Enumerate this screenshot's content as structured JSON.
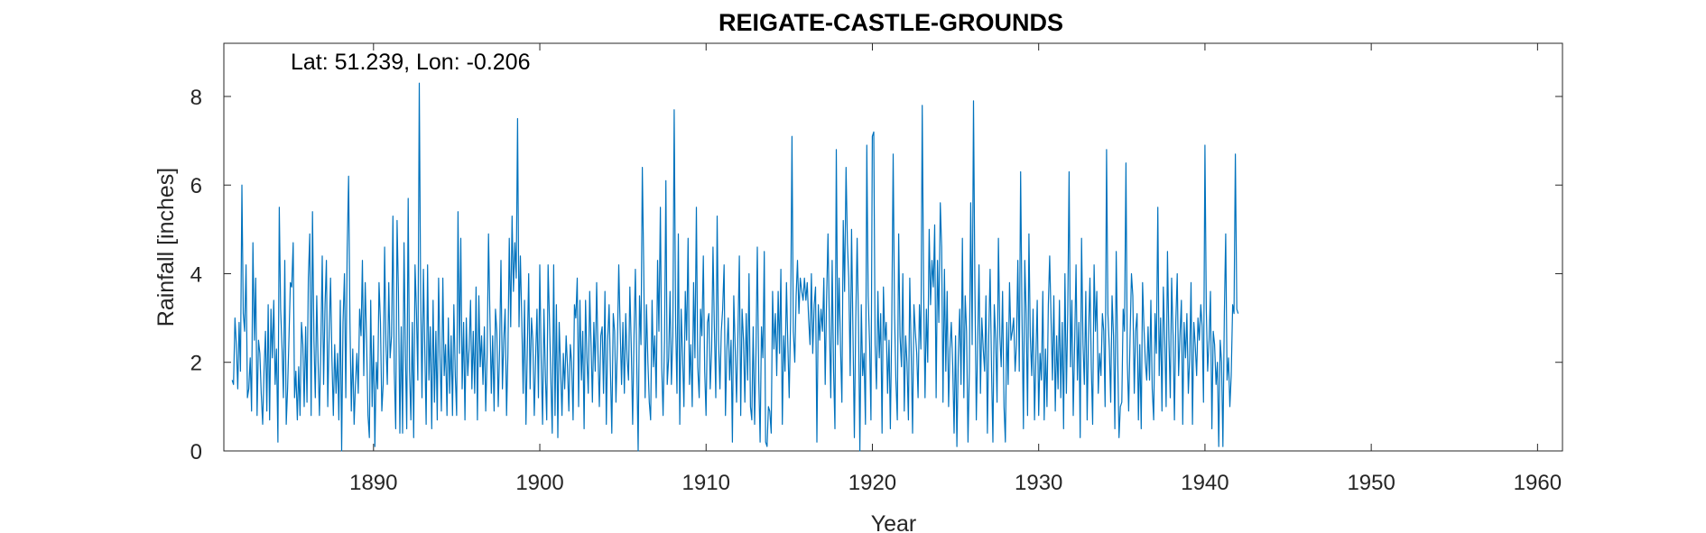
{
  "chart_data": {
    "type": "line",
    "title": "REIGATE-CASTLE-GROUNDS",
    "xlabel": "Year",
    "ylabel": "Rainfall [inches]",
    "annotation": "Lat: 51.239, Lon: -0.206",
    "xlim": [
      1881,
      1961.5
    ],
    "ylim": [
      0,
      9.2
    ],
    "xticks": [
      1890,
      1900,
      1910,
      1920,
      1930,
      1940,
      1950,
      1960
    ],
    "yticks": [
      0,
      2,
      4,
      6,
      8
    ],
    "grid": false,
    "line_color": "#0072BD",
    "series": [
      {
        "x_start": 1881.5,
        "x_step": 0.08333,
        "values": [
          1.6,
          1.5,
          3.0,
          2.4,
          1.4,
          2.9,
          1.8,
          6.0,
          3.1,
          2.7,
          4.2,
          1.2,
          1.4,
          2.1,
          0.9,
          4.7,
          2.5,
          3.9,
          0.8,
          2.5,
          2.2,
          1.3,
          0.6,
          1.8,
          2.7,
          0.9,
          3.3,
          0.7,
          3.2,
          2.1,
          3.4,
          1.5,
          2.3,
          0.2,
          5.5,
          3.2,
          2.3,
          1.2,
          4.3,
          0.6,
          1.4,
          2.6,
          3.8,
          3.7,
          4.7,
          1.2,
          1.8,
          0.7,
          1.9,
          0.8,
          2.9,
          2.4,
          1.0,
          2.8,
          1.1,
          3.9,
          4.9,
          0.8,
          5.4,
          2.5,
          1.2,
          3.5,
          2.0,
          0.8,
          2.4,
          4.4,
          1.5,
          3.3,
          4.3,
          1.0,
          2.7,
          3.9,
          2.1,
          0.8,
          2.4,
          1.3,
          2.2,
          0.7,
          3.4,
          0.0,
          2.9,
          4.0,
          1.2,
          4.5,
          6.2,
          2.9,
          0.9,
          2.3,
          0.6,
          1.5,
          2.2,
          1.3,
          3.2,
          2.6,
          4.3,
          1.7,
          3.8,
          2.5,
          0.8,
          0.3,
          3.4,
          1.0,
          2.6,
          0.1,
          2.0,
          1.4,
          3.8,
          2.9,
          0.9,
          1.5,
          4.6,
          2.4,
          1.5,
          3.8,
          2.1,
          2.6,
          5.3,
          1.8,
          0.5,
          5.2,
          3.6,
          0.4,
          2.8,
          0.4,
          4.7,
          2.2,
          0.5,
          5.7,
          1.8,
          0.7,
          2.9,
          0.3,
          4.2,
          3.1,
          1.6,
          8.3,
          3.6,
          1.2,
          4.1,
          2.3,
          0.6,
          4.2,
          1.6,
          2.8,
          0.5,
          3.4,
          1.1,
          2.7,
          0.7,
          3.9,
          2.1,
          0.9,
          3.9,
          1.7,
          2.4,
          0.8,
          3.0,
          1.3,
          2.6,
          0.8,
          3.3,
          1.7,
          0.8,
          5.4,
          2.2,
          4.8,
          1.4,
          2.9,
          0.7,
          3.0,
          1.7,
          2.3,
          3.4,
          1.4,
          2.7,
          1.3,
          3.7,
          0.7,
          3.5,
          1.9,
          2.6,
          1.5,
          2.8,
          0.9,
          2.2,
          4.9,
          3.1,
          1.3,
          2.6,
          0.9,
          3.2,
          2.7,
          1.0,
          2.3,
          4.3,
          1.4,
          2.5,
          3.2,
          0.8,
          2.2,
          4.8,
          2.8,
          5.3,
          3.6,
          4.7,
          3.9,
          7.5,
          2.8,
          4.4,
          2.9,
          1.3,
          3.4,
          0.6,
          2.3,
          4.0,
          1.4,
          3.0,
          2.5,
          0.8,
          2.1,
          3.2,
          1.2,
          4.2,
          2.1,
          0.6,
          3.2,
          1.7,
          0.7,
          4.2,
          2.9,
          1.6,
          0.4,
          4.2,
          0.8,
          3.3,
          0.3,
          2.9,
          1.9,
          0.8,
          2.2,
          1.4,
          2.6,
          1.9,
          0.9,
          2.4,
          2.0,
          0.7,
          3.3,
          3.0,
          3.9,
          1.0,
          3.4,
          1.6,
          2.7,
          0.5,
          3.4,
          2.1,
          1.3,
          3.6,
          2.4,
          1.1,
          2.9,
          1.8,
          3.8,
          2.2,
          1.0,
          2.6,
          2.8,
          1.3,
          3.6,
          0.6,
          2.5,
          3.3,
          1.8,
          0.4,
          3.1,
          2.7,
          1.1,
          2.4,
          4.2,
          2.8,
          1.5,
          2.9,
          1.3,
          3.1,
          2.1,
          1.6,
          3.7,
          2.4,
          0.6,
          2.6,
          4.1,
          1.9,
          0.0,
          3.5,
          2.4,
          6.4,
          4.2,
          1.2,
          3.3,
          2.0,
          1.1,
          0.7,
          3.4,
          1.9,
          2.6,
          1.2,
          4.3,
          2.7,
          5.5,
          1.9,
          0.8,
          2.5,
          6.1,
          1.5,
          2.1,
          3.6,
          1.5,
          2.6,
          7.7,
          2.9,
          1.3,
          4.9,
          0.6,
          3.2,
          2.2,
          1.0,
          3.6,
          2.5,
          4.8,
          1.5,
          2.4,
          1.0,
          3.8,
          2.1,
          5.5,
          1.9,
          1.2,
          3.2,
          2.6,
          4.4,
          1.8,
          0.8,
          2.9,
          3.1,
          1.4,
          2.3,
          4.6,
          2.8,
          1.2,
          5.3,
          2.5,
          1.4,
          2.7,
          3.2,
          4.2,
          0.8,
          2.3,
          3.0,
          1.6,
          2.5,
          0.2,
          3.5,
          2.3,
          1.1,
          2.6,
          4.4,
          0.8,
          3.2,
          2.5,
          1.1,
          3.1,
          1.6,
          4.0,
          1.0,
          0.7,
          2.8,
          0.6,
          2.2,
          4.6,
          1.6,
          0.2,
          2.8,
          2.1,
          4.5,
          0.2,
          0.1,
          1.0,
          0.9,
          0.4,
          3.6,
          2.3,
          3.1,
          1.7,
          3.6,
          2.2,
          4.1,
          0.6,
          2.6,
          1.8,
          3.8,
          2.4,
          1.2,
          3.0,
          7.1,
          2.7,
          2.0,
          3.5,
          4.3,
          3.1,
          3.9,
          3.6,
          3.4,
          3.9,
          3.4,
          3.8,
          3.0,
          2.4,
          4.0,
          2.2,
          3.3,
          3.7,
          0.2,
          3.3,
          2.5,
          3.2,
          2.7,
          3.9,
          1.5,
          3.5,
          4.9,
          2.8,
          1.2,
          4.3,
          1.8,
          0.5,
          6.8,
          2.4,
          3.9,
          2.4,
          1.1,
          5.2,
          3.6,
          6.4,
          4.7,
          3.9,
          1.7,
          5.0,
          2.6,
          0.3,
          2.9,
          4.8,
          2.9,
          0.0,
          3.3,
          1.7,
          2.2,
          0.6,
          6.9,
          3.5,
          2.4,
          0.7,
          7.1,
          7.2,
          2.4,
          1.4,
          3.6,
          2.1,
          3.1,
          0.4,
          3.7,
          2.5,
          2.9,
          1.3,
          2.5,
          0.5,
          2.8,
          6.7,
          3.1,
          1.6,
          0.7,
          4.9,
          2.6,
          1.9,
          4.0,
          0.9,
          2.6,
          2.0,
          0.7,
          3.9,
          2.3,
          0.4,
          3.3,
          2.7,
          2.2,
          1.2,
          3.3,
          2.3,
          7.8,
          3.7,
          1.2,
          3.2,
          2.0,
          5.0,
          3.3,
          4.3,
          3.7,
          5.1,
          1.2,
          4.3,
          2.9,
          5.6,
          4.6,
          1.1,
          4.1,
          1.8,
          3.6,
          1.0,
          2.3,
          2.9,
          1.9,
          0.4,
          2.6,
          0.1,
          2.1,
          3.2,
          1.5,
          4.8,
          1.2,
          3.5,
          2.7,
          0.2,
          1.8,
          5.6,
          2.4,
          7.9,
          3.8,
          0.7,
          2.4,
          4.2,
          1.3,
          3.0,
          2.3,
          1.8,
          3.5,
          0.4,
          2.6,
          4.1,
          1.8,
          0.2,
          3.3,
          2.5,
          1.1,
          4.8,
          2.6,
          1.9,
          3.6,
          1.0,
          0.2,
          2.9,
          1.5,
          3.8,
          2.5,
          2.7,
          3.0,
          1.8,
          2.4,
          4.3,
          1.8,
          6.3,
          3.1,
          0.5,
          4.3,
          3.1,
          0.8,
          4.9,
          2.6,
          1.7,
          3.2,
          0.7,
          2.1,
          3.4,
          0.8,
          2.2,
          1.6,
          3.6,
          0.7,
          2.3,
          1.0,
          3.3,
          4.4,
          2.9,
          1.6,
          3.5,
          0.9,
          2.6,
          1.4,
          3.4,
          1.2,
          2.9,
          0.5,
          4.0,
          1.3,
          3.1,
          6.3,
          1.9,
          3.4,
          0.8,
          2.5,
          4.2,
          1.6,
          2.9,
          0.3,
          4.8,
          2.4,
          1.5,
          3.6,
          0.7,
          2.6,
          3.9,
          1.9,
          0.6,
          4.2,
          2.7,
          3.6,
          1.3,
          2.2,
          1.7,
          3.1,
          2.7,
          1.0,
          6.8,
          3.1,
          2.3,
          1.1,
          3.5,
          2.6,
          0.5,
          4.5,
          2.2,
          0.3,
          1.0,
          1.1,
          3.2,
          2.7,
          6.5,
          2.0,
          0.9,
          2.6,
          4.0,
          3.5,
          1.3,
          2.7,
          3.1,
          0.7,
          2.4,
          0.5,
          3.8,
          2.8,
          2.0,
          1.6,
          2.8,
          1.6,
          3.4,
          1.4,
          0.7,
          3.1,
          2.2,
          5.5,
          1.7,
          3.0,
          0.9,
          3.7,
          2.5,
          1.0,
          4.5,
          2.5,
          1.2,
          3.9,
          2.6,
          0.7,
          2.9,
          4.0,
          1.7,
          2.6,
          3.4,
          0.6,
          2.9,
          2.1,
          3.1,
          1.3,
          2.1,
          3.8,
          0.6,
          2.9,
          2.4,
          1.7,
          3.0,
          2.5,
          3.3,
          2.8,
          1.1,
          6.9,
          3.2,
          1.8,
          2.5,
          3.6,
          0.5,
          2.7,
          2.4,
          1.5,
          2.0,
          0.1,
          2.5,
          2.0,
          0.1,
          3.1,
          4.9,
          1.6,
          2.1,
          1.0,
          1.7,
          3.3,
          3.1,
          6.7,
          3.2,
          3.1
        ]
      }
    ]
  }
}
